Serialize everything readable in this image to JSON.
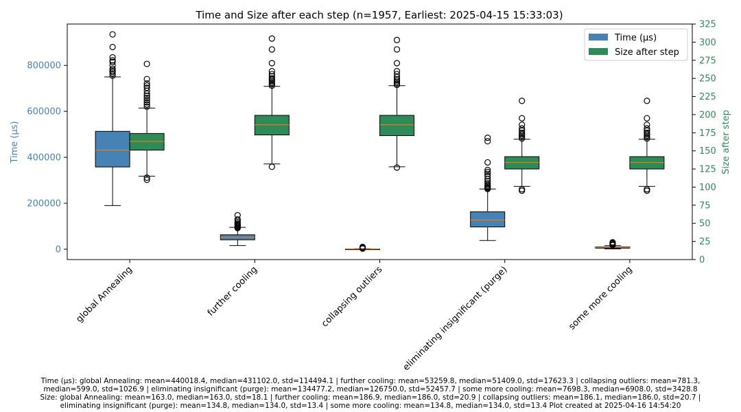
{
  "chart_data": {
    "type": "box",
    "title": "Time and Size after each step (n=1957, Earliest: 2025-04-15 15:33:03)",
    "categories": [
      "global Annealing",
      "further cooling",
      "collapsing outliers",
      "eliminating insignificant (purge)",
      "some more cooling"
    ],
    "left_axis": {
      "label": "Time (µs)",
      "color": "#4682b4",
      "ylim": [
        -45000,
        980000
      ],
      "ticks": [
        0,
        200000,
        400000,
        600000,
        800000
      ],
      "tick_labels": [
        "0",
        "200000",
        "400000",
        "600000",
        "800000"
      ]
    },
    "right_axis": {
      "label": "Size after step",
      "color": "#2e8b57",
      "ylim": [
        0,
        325
      ],
      "ticks": [
        0,
        25,
        50,
        75,
        100,
        125,
        150,
        175,
        200,
        225,
        250,
        275,
        300,
        325
      ],
      "tick_labels": [
        "0",
        "25",
        "50",
        "75",
        "100",
        "125",
        "150",
        "175",
        "200",
        "225",
        "250",
        "275",
        "300",
        "325"
      ]
    },
    "legend": {
      "position": "top-right",
      "entries": [
        {
          "label": "Time (µs)",
          "color": "#4682b4"
        },
        {
          "label": "Size after step",
          "color": "#2e8b57"
        }
      ]
    },
    "series": [
      {
        "name": "Time (µs)",
        "axis": "left",
        "color": "#4682b4",
        "boxes": [
          {
            "whisker_low": 190000,
            "q1": 358000,
            "median": 431102,
            "q3": 513000,
            "whisker_high": 750000,
            "outliers": [
              755000,
              765000,
              772000,
              778000,
              785000,
              800000,
              815000,
              822000,
              835000,
              880000,
              935000
            ]
          },
          {
            "whisker_low": 16000,
            "q1": 41000,
            "median": 51409,
            "q3": 63000,
            "whisker_high": 95000,
            "outliers": [
              92000,
              96000,
              100000,
              104000,
              108000,
              112000,
              118000,
              124000,
              130000,
              148000
            ]
          },
          {
            "whisker_low": 0,
            "q1": 300,
            "median": 599,
            "q3": 1000,
            "whisker_high": 2200,
            "outliers": [
              2800,
              3500,
              4500,
              5500,
              7000,
              8500,
              10000
            ]
          },
          {
            "whisker_low": 38000,
            "q1": 97000,
            "median": 126750,
            "q3": 163000,
            "whisker_high": 262000,
            "outliers": [
              262000,
              266000,
              270000,
              275000,
              280000,
              288000,
              296000,
              305000,
              318000,
              328000,
              336000,
              345000,
              378000,
              470000,
              485000
            ]
          },
          {
            "whisker_low": 1500,
            "q1": 4500,
            "median": 6908,
            "q3": 9500,
            "whisker_high": 16000,
            "outliers": [
              18000,
              21000,
              24000,
              27000,
              30000
            ]
          }
        ]
      },
      {
        "name": "Size after step",
        "axis": "right",
        "color": "#2e8b57",
        "boxes": [
          {
            "whisker_low": 115,
            "q1": 151,
            "median": 163,
            "q3": 174,
            "whisker_high": 209,
            "outliers": [
              110,
              113,
              211,
              214,
              217,
              220,
              223,
              226,
              229,
              233,
              237,
              240,
              243,
              249,
              270
            ]
          },
          {
            "whisker_low": 132,
            "q1": 172,
            "median": 186,
            "q3": 199,
            "whisker_high": 239,
            "outliers": [
              128,
              240,
              242,
              244,
              246,
              248,
              250,
              253,
              256,
              260,
              271,
              290,
              305
            ]
          },
          {
            "whisker_low": 128,
            "q1": 171,
            "median": 186,
            "q3": 199,
            "whisker_high": 240,
            "outliers": [
              127,
              241,
              243,
              245,
              247,
              249,
              252,
              256,
              260,
              271,
              290,
              303
            ]
          },
          {
            "whisker_low": 101,
            "q1": 125,
            "median": 134,
            "q3": 142,
            "whisker_high": 166,
            "outliers": [
              95,
              97,
              167,
              169,
              171,
              173,
              175,
              178,
              181,
              186,
              195,
              219
            ]
          },
          {
            "whisker_low": 101,
            "q1": 125,
            "median": 134,
            "q3": 142,
            "whisker_high": 166,
            "outliers": [
              95,
              97,
              167,
              169,
              171,
              173,
              175,
              178,
              181,
              186,
              195,
              219
            ]
          }
        ]
      }
    ]
  },
  "footer": {
    "line1": "Time (µs): global Annealing: mean=440018.4, median=431102.0, std=114494.1 | further cooling: mean=53259.8, median=51409.0, std=17623.3 | collapsing outliers: mean=781.3,",
    "line2": "median=599.0, std=1026.9 | eliminating insignificant (purge): mean=134477.2, median=126750.0, std=52457.7 | some more cooling: mean=7698.3, median=6908.0, std=3428.8",
    "line3": "Size: global Annealing: mean=163.0, median=163.0, std=18.1 | further cooling: mean=186.9, median=186.0, std=20.9 | collapsing outliers: mean=186.1, median=186.0, std=20.7 |",
    "line4": "eliminating insignificant (purge): mean=134.8, median=134.0, std=13.4 | some more cooling: mean=134.8, median=134.0, std=13.4    Plot created at 2025-04-16 14:54:20"
  }
}
